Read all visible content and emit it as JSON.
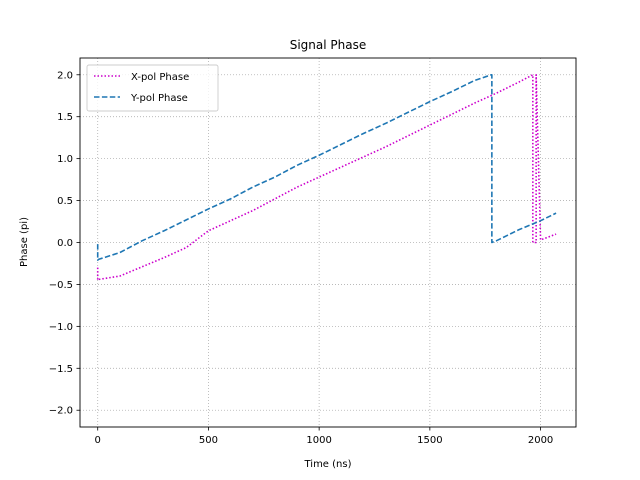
{
  "chart_data": {
    "type": "line",
    "title": "Signal Phase",
    "xlabel": "Time (ns)",
    "ylabel": "Phase (pi)",
    "xlim": [
      -80,
      2160
    ],
    "ylim": [
      -2.2,
      2.2
    ],
    "xticks": [
      0,
      500,
      1000,
      1500,
      2000
    ],
    "xtick_labels": [
      "0",
      "500",
      "1000",
      "1500",
      "2000"
    ],
    "yticks": [
      -2.0,
      -1.5,
      -1.0,
      -0.5,
      0.0,
      0.5,
      1.0,
      1.5,
      2.0
    ],
    "ytick_labels": [
      "−2.0",
      "−1.5",
      "−1.0",
      "−0.5",
      "0.0",
      "0.5",
      "1.0",
      "1.5",
      "2.0"
    ],
    "grid": true,
    "legend_position": "top-left",
    "series": [
      {
        "name": "X-pol Phase",
        "color": "#cc00cc",
        "style": "dotted",
        "x": [
          0,
          0,
          5,
          100,
          200,
          300,
          400,
          500,
          600,
          700,
          800,
          900,
          1000,
          1100,
          1200,
          1300,
          1400,
          1500,
          1600,
          1700,
          1800,
          1900,
          1965,
          1965,
          1980,
          1980,
          2000,
          2050,
          2070
        ],
        "y": [
          -0.3,
          -0.45,
          -0.44,
          -0.4,
          -0.29,
          -0.18,
          -0.06,
          0.14,
          0.26,
          0.38,
          0.52,
          0.66,
          0.78,
          0.9,
          1.02,
          1.14,
          1.27,
          1.4,
          1.53,
          1.66,
          1.78,
          1.91,
          2.0,
          0.0,
          0.0,
          2.0,
          0.03,
          0.08,
          0.1
        ]
      },
      {
        "name": "Y-pol Phase",
        "color": "#1f77b4",
        "style": "dashed",
        "x": [
          0,
          0,
          5,
          100,
          200,
          300,
          400,
          500,
          600,
          700,
          800,
          900,
          1000,
          1100,
          1200,
          1300,
          1400,
          1500,
          1600,
          1700,
          1778,
          1780,
          1780,
          1800,
          1900,
          2000,
          2070
        ],
        "y": [
          -0.02,
          -0.21,
          -0.2,
          -0.12,
          0.02,
          0.14,
          0.27,
          0.4,
          0.52,
          0.66,
          0.78,
          0.92,
          1.04,
          1.17,
          1.3,
          1.42,
          1.55,
          1.68,
          1.8,
          1.93,
          2.0,
          2.0,
          0.0,
          0.02,
          0.15,
          0.26,
          0.35
        ]
      }
    ]
  }
}
